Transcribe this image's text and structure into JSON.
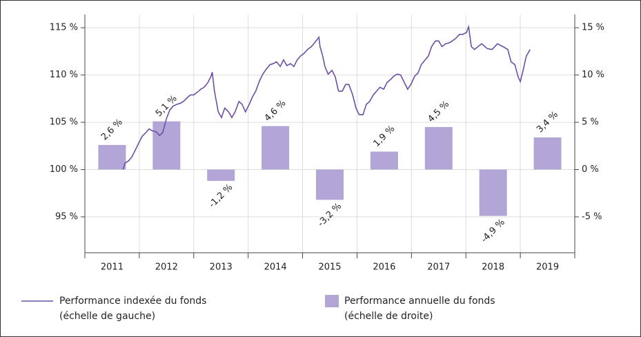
{
  "chart_data": {
    "type": "bar_line",
    "categories": [
      "2011",
      "2012",
      "2013",
      "2014",
      "2015",
      "2016",
      "2017",
      "2018",
      "2019"
    ],
    "xlim": [
      2011,
      2020
    ],
    "ylim": [
      91.2,
      116.4
    ],
    "yticks": [
      {
        "value": 115,
        "label": "115 %"
      },
      {
        "value": 110,
        "label": "110 %"
      },
      {
        "value": 105,
        "label": "105 %"
      },
      {
        "value": 100,
        "label": "100 %"
      },
      {
        "value": 95,
        "label": "95 %"
      }
    ],
    "y2lim": [
      -8.8,
      16.4
    ],
    "y2ticks": [
      {
        "value": 15,
        "label": "15 %"
      },
      {
        "value": 10,
        "label": "10 %"
      },
      {
        "value": 5,
        "label": "5 %"
      },
      {
        "value": 0,
        "label": "0 %"
      },
      {
        "value": -5,
        "label": "-5 %"
      }
    ],
    "grid": true,
    "series": [
      {
        "name": "Performance indexée du fonds (échelle de gauche)",
        "type": "line",
        "color": "#6b4fa6",
        "x": [
          2011.7,
          2011.74,
          2011.8,
          2011.86,
          2011.93,
          2011.99,
          2012.05,
          2012.12,
          2012.18,
          2012.24,
          2012.31,
          2012.37,
          2012.43,
          2012.5,
          2012.56,
          2012.62,
          2012.69,
          2012.75,
          2012.81,
          2012.88,
          2012.94,
          2013.0,
          2013.07,
          2013.13,
          2013.19,
          2013.26,
          2013.32,
          2013.34,
          2013.38,
          2013.45,
          2013.51,
          2013.57,
          2013.64,
          2013.7,
          2013.76,
          2013.83,
          2013.89,
          2013.95,
          2014.02,
          2014.08,
          2014.14,
          2014.21,
          2014.27,
          2014.33,
          2014.4,
          2014.46,
          2014.52,
          2014.59,
          2014.65,
          2014.71,
          2014.78,
          2014.84,
          2014.9,
          2014.96,
          2015.03,
          2015.09,
          2015.16,
          2015.22,
          2015.3,
          2015.32,
          2015.37,
          2015.41,
          2015.47,
          2015.54,
          2015.6,
          2015.66,
          2015.73,
          2015.79,
          2015.85,
          2015.92,
          2015.98,
          2016.04,
          2016.11,
          2016.17,
          2016.23,
          2016.3,
          2016.36,
          2016.42,
          2016.49,
          2016.55,
          2016.61,
          2016.68,
          2016.74,
          2016.8,
          2016.87,
          2016.93,
          2016.99,
          2017.06,
          2017.12,
          2017.18,
          2017.25,
          2017.31,
          2017.37,
          2017.44,
          2017.5,
          2017.56,
          2017.63,
          2017.69,
          2017.75,
          2017.82,
          2017.88,
          2017.94,
          2018.01,
          2018.05,
          2018.1,
          2018.16,
          2018.22,
          2018.29,
          2018.39,
          2018.48,
          2018.58,
          2018.68,
          2018.77,
          2018.83,
          2018.9,
          2018.96,
          2019.0,
          2019.05,
          2019.11,
          2019.18
        ],
        "values": [
          100.0,
          100.7,
          100.9,
          101.3,
          102.1,
          102.8,
          103.5,
          103.9,
          104.3,
          104.1,
          104.0,
          103.6,
          103.9,
          105.4,
          106.3,
          106.7,
          106.9,
          107.0,
          107.2,
          107.6,
          107.9,
          107.9,
          108.2,
          108.5,
          108.7,
          109.2,
          109.9,
          110.3,
          108.3,
          106.1,
          105.5,
          106.5,
          106.1,
          105.5,
          106.1,
          107.2,
          106.9,
          106.1,
          106.9,
          107.7,
          108.3,
          109.4,
          110.1,
          110.6,
          111.1,
          111.2,
          111.4,
          110.9,
          111.6,
          111.0,
          111.2,
          110.9,
          111.6,
          112.0,
          112.3,
          112.7,
          113.0,
          113.4,
          114.0,
          113.0,
          112.0,
          110.9,
          110.1,
          110.5,
          109.8,
          108.3,
          108.3,
          109.0,
          109.0,
          107.9,
          106.5,
          105.8,
          105.8,
          106.9,
          107.2,
          107.9,
          108.3,
          108.7,
          108.5,
          109.2,
          109.5,
          109.9,
          110.1,
          110.0,
          109.2,
          108.5,
          109.0,
          109.9,
          110.2,
          111.1,
          111.6,
          112.0,
          113.0,
          113.6,
          113.6,
          113.0,
          113.3,
          113.4,
          113.6,
          113.9,
          114.3,
          114.3,
          114.5,
          115.1,
          113.0,
          112.7,
          113.0,
          113.3,
          112.8,
          112.7,
          113.3,
          113.0,
          112.7,
          111.4,
          111.1,
          109.8,
          109.3,
          110.5,
          112.0,
          112.7
        ]
      },
      {
        "name": "Performance annuelle du fonds (échelle de droite)",
        "type": "bar",
        "axis": "y2",
        "color": "#b3a6d7",
        "values": [
          2.6,
          5.1,
          -1.2,
          4.6,
          -3.2,
          1.9,
          4.5,
          -4.9,
          3.4
        ],
        "value_labels": [
          "2,6 %",
          "5,1 %",
          "-1,2 %",
          "4,6 %",
          "-3,2 %",
          "1,9 %",
          "4,5 %",
          "-4,9 %",
          "3,4 %"
        ]
      }
    ]
  }
}
